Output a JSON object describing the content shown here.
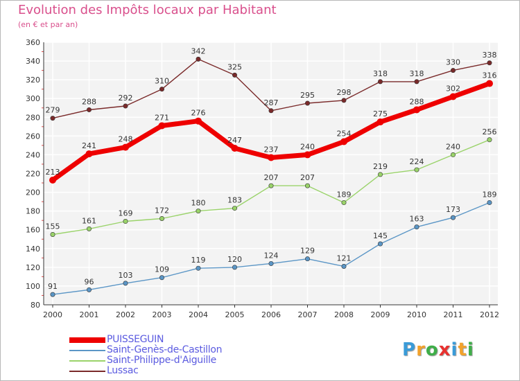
{
  "chart_data": {
    "type": "line",
    "title": "Evolution des Impôts locaux par Habitant",
    "subtitle": "(en € et par an)",
    "x": [
      "2000",
      "2001",
      "2002",
      "2003",
      "2004",
      "2005",
      "2006",
      "2007",
      "2008",
      "2009",
      "2010",
      "2011",
      "2012"
    ],
    "ylim": [
      80,
      360
    ],
    "yticks": [
      80,
      100,
      120,
      140,
      160,
      180,
      200,
      220,
      240,
      260,
      280,
      300,
      320,
      340,
      360
    ],
    "grid": true,
    "legend_position": "bottom-left",
    "series": [
      {
        "name": "Lussac",
        "color": "#7a2a2a",
        "values": [
          279,
          288,
          292,
          310,
          342,
          325,
          287,
          295,
          298,
          318,
          318,
          330,
          338
        ]
      },
      {
        "name": "Saint-Philippe-d'Aiguille",
        "color": "#9ad36a",
        "values": [
          155,
          161,
          169,
          172,
          180,
          183,
          207,
          207,
          189,
          219,
          224,
          240,
          256
        ]
      },
      {
        "name": "Saint-Genès-de-Castillon",
        "color": "#5b96c6",
        "values": [
          91,
          96,
          103,
          109,
          119,
          120,
          124,
          129,
          121,
          145,
          163,
          173,
          189
        ]
      },
      {
        "name": "PUISSEGUIN",
        "color": "#ee0000",
        "values": [
          213,
          241,
          248,
          271,
          276,
          247,
          237,
          240,
          254,
          275,
          288,
          302,
          316
        ]
      }
    ]
  },
  "legend": {
    "items": [
      {
        "label": "PUISSEGUIN",
        "color": "#ee0000"
      },
      {
        "label": "Saint-Genès-de-Castillon",
        "color": "#5b96c6"
      },
      {
        "label": "Saint-Philippe-d'Aiguille",
        "color": "#9ad36a"
      },
      {
        "label": "Lussac",
        "color": "#7a2a2a"
      }
    ]
  },
  "logo": {
    "letters": [
      "P",
      "r",
      "o",
      "x",
      "i",
      "t",
      "i"
    ],
    "colors": [
      "#3a9bd8",
      "#f2a22c",
      "#3fae49",
      "#e8312f",
      "#3a9bd8",
      "#f2a22c",
      "#3fae49"
    ]
  }
}
